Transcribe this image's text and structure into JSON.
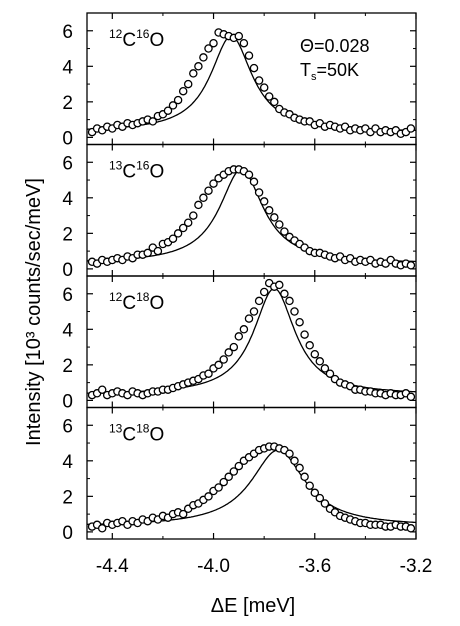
{
  "chart_data": {
    "type": "scatter",
    "xlabel": "ΔE [meV]",
    "ylabel": "Intensity [10³ counts/sec/meV]",
    "xlim": [
      -4.5,
      -3.2
    ],
    "x_ticks": [
      "-4.4",
      "-4.0",
      "-3.6",
      "-3.2"
    ],
    "x_tick_values": [
      -4.4,
      -4.0,
      -3.6,
      -3.2
    ],
    "y_ticks": [
      "0",
      "2",
      "4",
      "6"
    ],
    "y_tick_values": [
      0,
      2,
      4,
      6
    ],
    "ylim": [
      -0.4,
      7.0
    ],
    "annotation": {
      "theta": "Θ=0.028",
      "temp_prefix": "T",
      "temp_sub": "s",
      "temp_value": "=50K"
    },
    "panels": [
      {
        "iso_c": "12",
        "iso_o": "16",
        "label_c": "C",
        "label_o": "O",
        "peak_center": -3.93,
        "peak_height": 5.7,
        "peak_width": 0.1,
        "baseline": 0.3,
        "x": [
          -4.48,
          -4.46,
          -4.44,
          -4.42,
          -4.4,
          -4.38,
          -4.36,
          -4.34,
          -4.32,
          -4.3,
          -4.28,
          -4.26,
          -4.24,
          -4.22,
          -4.2,
          -4.18,
          -4.16,
          -4.14,
          -4.12,
          -4.1,
          -4.08,
          -4.06,
          -4.04,
          -4.02,
          -4.0,
          -3.98,
          -3.96,
          -3.94,
          -3.92,
          -3.9,
          -3.88,
          -3.86,
          -3.84,
          -3.82,
          -3.8,
          -3.78,
          -3.76,
          -3.74,
          -3.72,
          -3.7,
          -3.68,
          -3.66,
          -3.64,
          -3.62,
          -3.6,
          -3.58,
          -3.56,
          -3.54,
          -3.52,
          -3.5,
          -3.48,
          -3.46,
          -3.44,
          -3.42,
          -3.4,
          -3.38,
          -3.36,
          -3.34,
          -3.32,
          -3.3,
          -3.28,
          -3.26,
          -3.24,
          -3.22
        ],
        "values": [
          0.3,
          0.5,
          0.4,
          0.6,
          0.5,
          0.7,
          0.6,
          0.8,
          0.7,
          0.8,
          0.9,
          1.0,
          0.9,
          1.2,
          1.3,
          1.5,
          1.8,
          2.1,
          2.6,
          3.0,
          3.6,
          4.0,
          4.5,
          5.0,
          5.3,
          5.9,
          5.8,
          5.7,
          5.6,
          5.7,
          5.3,
          4.6,
          3.9,
          3.2,
          2.8,
          2.3,
          2.0,
          1.6,
          1.4,
          1.3,
          1.1,
          1.0,
          0.9,
          0.9,
          0.7,
          0.8,
          0.6,
          0.7,
          0.6,
          0.5,
          0.6,
          0.4,
          0.5,
          0.4,
          0.5,
          0.3,
          0.5,
          0.3,
          0.4,
          0.3,
          0.4,
          0.2,
          0.3,
          0.5
        ]
      },
      {
        "iso_c": "13",
        "iso_o": "16",
        "label_c": "C",
        "label_o": "O",
        "peak_center": -3.89,
        "peak_height": 5.6,
        "peak_width": 0.105,
        "baseline": 0.3,
        "x": [
          -4.48,
          -4.46,
          -4.44,
          -4.42,
          -4.4,
          -4.38,
          -4.36,
          -4.34,
          -4.32,
          -4.3,
          -4.28,
          -4.26,
          -4.24,
          -4.22,
          -4.2,
          -4.18,
          -4.16,
          -4.14,
          -4.12,
          -4.1,
          -4.08,
          -4.06,
          -4.04,
          -4.02,
          -4.0,
          -3.98,
          -3.96,
          -3.94,
          -3.92,
          -3.9,
          -3.88,
          -3.86,
          -3.84,
          -3.82,
          -3.8,
          -3.78,
          -3.76,
          -3.74,
          -3.72,
          -3.7,
          -3.68,
          -3.66,
          -3.64,
          -3.62,
          -3.6,
          -3.58,
          -3.56,
          -3.54,
          -3.52,
          -3.5,
          -3.48,
          -3.46,
          -3.44,
          -3.42,
          -3.4,
          -3.38,
          -3.36,
          -3.34,
          -3.32,
          -3.3,
          -3.28,
          -3.26,
          -3.24,
          -3.22
        ],
        "values": [
          0.4,
          0.3,
          0.5,
          0.4,
          0.5,
          0.6,
          0.5,
          0.7,
          0.6,
          0.8,
          0.8,
          0.9,
          1.2,
          1.0,
          1.4,
          1.5,
          1.7,
          2.0,
          2.3,
          2.6,
          3.0,
          3.6,
          4.0,
          4.4,
          4.8,
          5.1,
          5.3,
          5.5,
          5.6,
          5.6,
          5.5,
          5.3,
          4.9,
          4.3,
          3.8,
          3.3,
          2.9,
          2.5,
          2.1,
          1.8,
          1.6,
          1.4,
          1.2,
          1.0,
          0.9,
          0.9,
          0.8,
          0.7,
          0.6,
          0.7,
          0.5,
          0.6,
          0.4,
          0.5,
          0.4,
          0.5,
          0.3,
          0.4,
          0.3,
          0.5,
          0.3,
          0.2,
          0.3,
          0.2
        ]
      },
      {
        "iso_c": "12",
        "iso_o": "18",
        "label_c": "C",
        "label_o": "O",
        "peak_center": -3.76,
        "peak_height": 6.3,
        "peak_width": 0.1,
        "baseline": 0.3,
        "x": [
          -4.48,
          -4.46,
          -4.44,
          -4.42,
          -4.4,
          -4.38,
          -4.36,
          -4.34,
          -4.32,
          -4.3,
          -4.28,
          -4.26,
          -4.24,
          -4.22,
          -4.2,
          -4.18,
          -4.16,
          -4.14,
          -4.12,
          -4.1,
          -4.08,
          -4.06,
          -4.04,
          -4.02,
          -4.0,
          -3.98,
          -3.96,
          -3.94,
          -3.92,
          -3.9,
          -3.88,
          -3.86,
          -3.84,
          -3.82,
          -3.8,
          -3.78,
          -3.76,
          -3.74,
          -3.72,
          -3.7,
          -3.68,
          -3.66,
          -3.64,
          -3.62,
          -3.6,
          -3.58,
          -3.56,
          -3.54,
          -3.52,
          -3.5,
          -3.48,
          -3.46,
          -3.44,
          -3.42,
          -3.4,
          -3.38,
          -3.36,
          -3.34,
          -3.32,
          -3.3,
          -3.28,
          -3.26,
          -3.24,
          -3.22
        ],
        "values": [
          0.3,
          0.4,
          0.6,
          0.3,
          0.4,
          0.5,
          0.4,
          0.3,
          0.5,
          0.4,
          0.3,
          0.4,
          0.5,
          0.5,
          0.6,
          0.6,
          0.7,
          0.8,
          0.9,
          1.0,
          1.1,
          1.2,
          1.4,
          1.5,
          1.8,
          2.0,
          2.3,
          2.7,
          3.0,
          3.6,
          4.0,
          4.6,
          5.0,
          5.6,
          6.1,
          6.6,
          6.4,
          6.5,
          6.0,
          5.6,
          5.0,
          4.4,
          3.7,
          3.1,
          2.6,
          2.2,
          1.8,
          1.5,
          1.2,
          1.0,
          0.9,
          0.8,
          0.6,
          0.6,
          0.5,
          0.5,
          0.4,
          0.4,
          0.3,
          0.4,
          0.3,
          0.3,
          0.4,
          0.2
        ]
      },
      {
        "iso_c": "13",
        "iso_o": "18",
        "label_c": "C",
        "label_o": "O",
        "peak_center": -3.745,
        "peak_height": 4.6,
        "peak_width": 0.13,
        "baseline": 0.3,
        "x": [
          -4.48,
          -4.46,
          -4.44,
          -4.42,
          -4.4,
          -4.38,
          -4.36,
          -4.34,
          -4.32,
          -4.3,
          -4.28,
          -4.26,
          -4.24,
          -4.22,
          -4.2,
          -4.18,
          -4.16,
          -4.14,
          -4.12,
          -4.1,
          -4.08,
          -4.06,
          -4.04,
          -4.02,
          -4.0,
          -3.98,
          -3.96,
          -3.94,
          -3.92,
          -3.9,
          -3.88,
          -3.86,
          -3.84,
          -3.82,
          -3.8,
          -3.78,
          -3.76,
          -3.74,
          -3.72,
          -3.7,
          -3.68,
          -3.66,
          -3.64,
          -3.62,
          -3.6,
          -3.58,
          -3.56,
          -3.54,
          -3.52,
          -3.5,
          -3.48,
          -3.46,
          -3.44,
          -3.42,
          -3.4,
          -3.38,
          -3.36,
          -3.34,
          -3.32,
          -3.3,
          -3.28,
          -3.26,
          -3.24,
          -3.22
        ],
        "values": [
          0.3,
          0.4,
          0.2,
          0.5,
          0.4,
          0.5,
          0.6,
          0.4,
          0.6,
          0.5,
          0.7,
          0.6,
          0.8,
          0.7,
          0.9,
          0.8,
          1.0,
          1.1,
          1.0,
          1.3,
          1.5,
          1.6,
          1.8,
          2.0,
          2.3,
          2.5,
          2.8,
          3.1,
          3.4,
          3.7,
          4.0,
          4.2,
          4.4,
          4.6,
          4.7,
          4.8,
          4.8,
          4.7,
          4.6,
          4.4,
          4.0,
          3.6,
          3.1,
          2.6,
          2.2,
          1.9,
          1.6,
          1.3,
          1.1,
          0.9,
          0.8,
          0.7,
          0.6,
          0.5,
          0.5,
          0.4,
          0.4,
          0.4,
          0.3,
          0.3,
          0.4,
          0.3,
          0.3,
          0.2
        ]
      }
    ]
  }
}
